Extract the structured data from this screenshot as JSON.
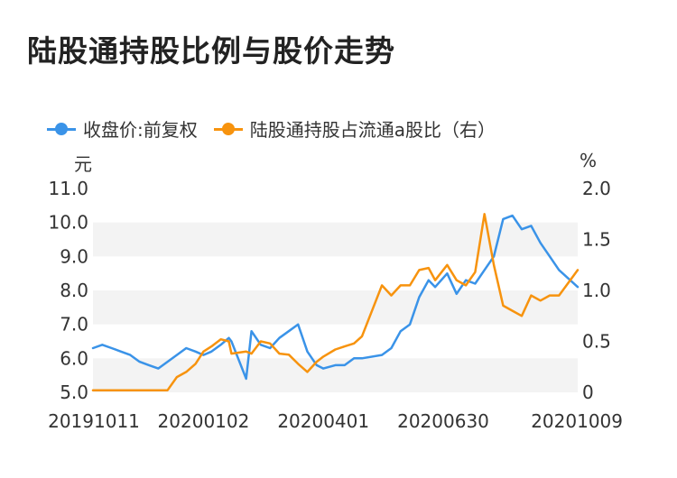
{
  "header": {
    "title": "陆股通持股比例与股价走势"
  },
  "chart_data": {
    "type": "line",
    "title": "陆股通持股比例与股价走势",
    "x_tick_labels": [
      "20191011",
      "20200102",
      "20200401",
      "20200630",
      "20201009"
    ],
    "x_range": [
      "20191011",
      "20201009"
    ],
    "left_axis": {
      "unit": "元",
      "ylim": [
        5.0,
        11.0
      ],
      "ticks": [
        "5.0",
        "6.0",
        "7.0",
        "8.0",
        "9.0",
        "10.0",
        "11.0"
      ]
    },
    "right_axis": {
      "unit": "%",
      "ylim": [
        0,
        2.0
      ],
      "ticks": [
        "0",
        "0.5",
        "1.0",
        "1.5",
        "2.0"
      ]
    },
    "grid": "alternating horizontal bands",
    "legend_position": "top",
    "series": [
      {
        "name": "收盘价:前复权",
        "axis": "left",
        "color": "#3a93e8",
        "x": [
          "20191011",
          "20191018",
          "20191025",
          "20191101",
          "20191108",
          "20191115",
          "20191122",
          "20191129",
          "20191206",
          "20191213",
          "20191220",
          "20191227",
          "20200102",
          "20200108",
          "20200115",
          "20200121",
          "20200123",
          "20200203",
          "20200207",
          "20200214",
          "20200221",
          "20200228",
          "20200306",
          "20200313",
          "20200320",
          "20200327",
          "20200401",
          "20200410",
          "20200417",
          "20200424",
          "20200430",
          "20200515",
          "20200522",
          "20200529",
          "20200605",
          "20200612",
          "20200619",
          "20200624",
          "20200703",
          "20200710",
          "20200717",
          "20200724",
          "20200731",
          "20200807",
          "20200814",
          "20200821",
          "20200828",
          "20200904",
          "20200911",
          "20200918",
          "20200925",
          "20201009"
        ],
        "y": [
          6.3,
          6.4,
          6.3,
          6.2,
          6.1,
          5.9,
          5.8,
          5.7,
          5.9,
          6.1,
          6.3,
          6.2,
          6.1,
          6.2,
          6.4,
          6.6,
          6.5,
          5.4,
          6.8,
          6.4,
          6.3,
          6.6,
          6.8,
          7.0,
          6.2,
          5.8,
          5.7,
          5.8,
          5.8,
          6.0,
          6.0,
          6.1,
          6.3,
          6.8,
          7.0,
          7.8,
          8.3,
          8.1,
          8.5,
          7.9,
          8.3,
          8.2,
          8.6,
          9.0,
          10.1,
          10.2,
          9.8,
          9.9,
          9.4,
          9.0,
          8.6,
          8.1
        ]
      },
      {
        "name": "陆股通持股占流通a股比（右）",
        "axis": "right",
        "color": "#f7930e",
        "x": [
          "20191011",
          "20191018",
          "20191025",
          "20191101",
          "20191108",
          "20191115",
          "20191122",
          "20191129",
          "20191206",
          "20191213",
          "20191220",
          "20191227",
          "20200102",
          "20200108",
          "20200115",
          "20200121",
          "20200123",
          "20200203",
          "20200207",
          "20200214",
          "20200221",
          "20200228",
          "20200306",
          "20200313",
          "20200320",
          "20200327",
          "20200401",
          "20200410",
          "20200417",
          "20200424",
          "20200430",
          "20200515",
          "20200522",
          "20200529",
          "20200605",
          "20200612",
          "20200619",
          "20200624",
          "20200703",
          "20200710",
          "20200717",
          "20200724",
          "20200731",
          "20200807",
          "20200814",
          "20200821",
          "20200828",
          "20200904",
          "20200911",
          "20200918",
          "20200925",
          "20201009"
        ],
        "y": [
          0.02,
          0.02,
          0.02,
          0.02,
          0.02,
          0.02,
          0.02,
          0.02,
          0.02,
          0.15,
          0.2,
          0.28,
          0.4,
          0.45,
          0.52,
          0.5,
          0.38,
          0.4,
          0.38,
          0.5,
          0.48,
          0.38,
          0.37,
          0.28,
          0.2,
          0.3,
          0.35,
          0.42,
          0.45,
          0.48,
          0.55,
          1.05,
          0.95,
          1.05,
          1.05,
          1.2,
          1.22,
          1.1,
          1.25,
          1.1,
          1.05,
          1.18,
          1.75,
          1.25,
          0.85,
          0.8,
          0.75,
          0.95,
          0.9,
          0.95,
          0.95,
          1.2
        ]
      }
    ]
  }
}
